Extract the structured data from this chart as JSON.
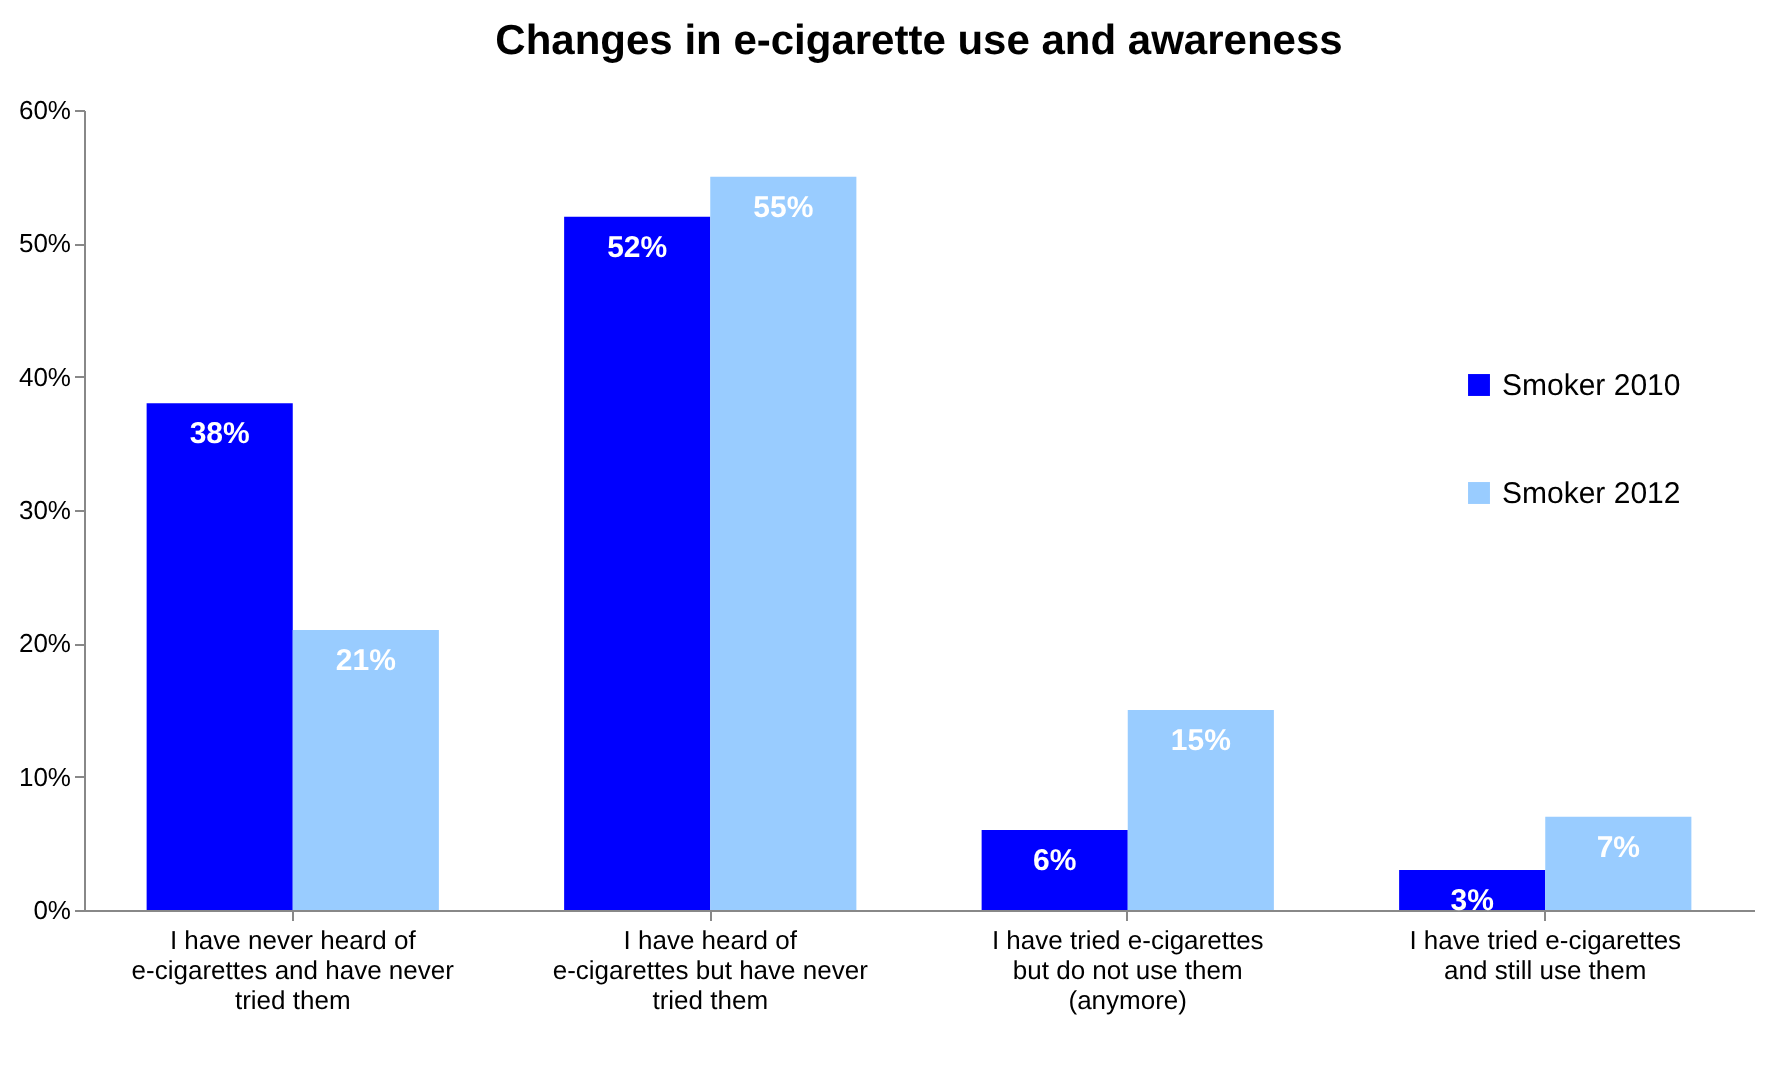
{
  "chart_data": {
    "type": "bar",
    "title": "Changes in e-cigarette use and awareness",
    "categories": [
      "I have never heard of e-cigarettes and have never tried them",
      "I have heard of e-cigarettes but have never tried them",
      "I have tried e-cigarettes but do not use them (anymore)",
      "I have tried e-cigarettes and still use them"
    ],
    "series": [
      {
        "name": "Smoker 2010",
        "color": "#0000ff",
        "values": [
          38,
          52,
          6,
          3
        ],
        "value_labels": [
          "38%",
          "52%",
          "6%",
          "3%"
        ]
      },
      {
        "name": "Smoker 2012",
        "color": "#99ccff",
        "values": [
          21,
          55,
          15,
          7
        ],
        "value_labels": [
          "21%",
          "55%",
          "15%",
          "7%"
        ]
      }
    ],
    "ylim": [
      0,
      60
    ],
    "yticks": [
      {
        "value": 0,
        "label": "0%"
      },
      {
        "value": 10,
        "label": "10%"
      },
      {
        "value": 20,
        "label": "20%"
      },
      {
        "value": 30,
        "label": "30%"
      },
      {
        "value": 40,
        "label": "40%"
      },
      {
        "value": 50,
        "label": "50%"
      },
      {
        "value": 60,
        "label": "60%"
      }
    ],
    "grid": false,
    "legend": "right"
  }
}
